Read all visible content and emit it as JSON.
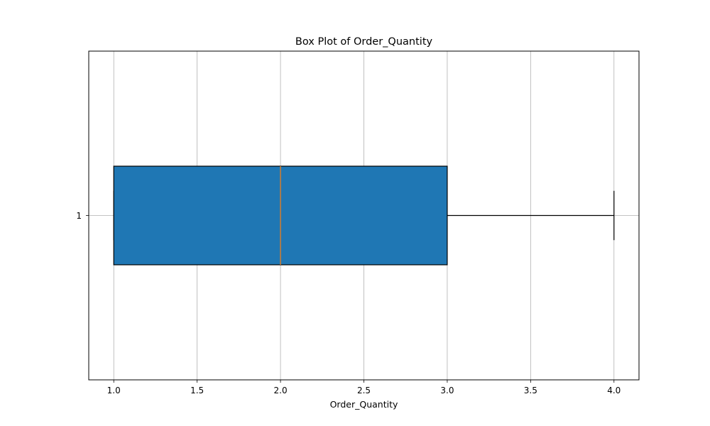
{
  "chart_data": {
    "type": "box",
    "orientation": "horizontal",
    "title": "Box Plot of Order_Quantity",
    "xlabel": "Order_Quantity",
    "ylabel": "",
    "xlim": [
      0.85,
      4.15
    ],
    "ylim": [
      0.5,
      1.5
    ],
    "grid": true,
    "x_ticks": [
      1.0,
      1.5,
      2.0,
      2.5,
      3.0,
      3.5,
      4.0
    ],
    "x_tick_labels": [
      "1.0",
      "1.5",
      "2.0",
      "2.5",
      "3.0",
      "3.5",
      "4.0"
    ],
    "y_ticks": [
      1
    ],
    "y_tick_labels": [
      "1"
    ],
    "series": [
      {
        "position": 1,
        "whisker_low": 1.0,
        "q1": 1.0,
        "median": 2.0,
        "q3": 3.0,
        "whisker_high": 4.0,
        "box_width": 0.15,
        "cap_width": 0.075
      }
    ],
    "colors": {
      "box_fill": "#1f77b4",
      "median_line": "#ff7f0e",
      "edge": "#000000",
      "grid": "#b0b0b0"
    }
  }
}
